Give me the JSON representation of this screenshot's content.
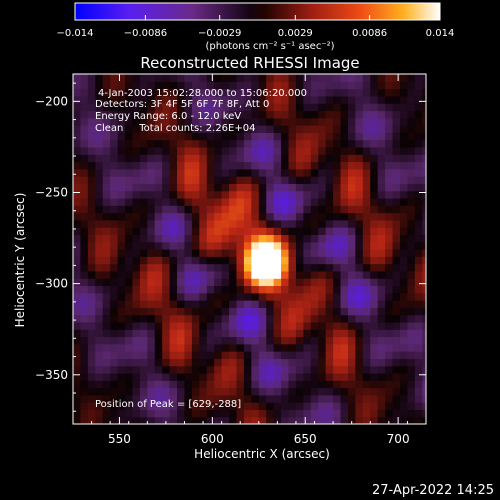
{
  "colorbar": {
    "tick_labels": [
      "−0.014",
      "−0.0086",
      "−0.0029",
      "0.0029",
      "0.0086",
      "0.014"
    ],
    "units_label": "(photons cm⁻² s⁻¹ asec⁻²)",
    "range": [
      -0.014,
      0.014
    ],
    "colors": [
      "#0000ff",
      "#7a2ae0",
      "#3a0a46",
      "#000000",
      "#7a1510",
      "#cc3020",
      "#ff7a10",
      "#ffd040",
      "#ffffff"
    ]
  },
  "chart_data": {
    "type": "heatmap",
    "title": "Reconstructed RHESSI Image",
    "xlabel": "Heliocentric X (arcsec)",
    "ylabel": "Heliocentric Y (arcsec)",
    "xlim": [
      525,
      715
    ],
    "ylim": [
      -377,
      -185
    ],
    "x_ticks": [
      550,
      600,
      650,
      700
    ],
    "y_ticks": [
      -200,
      -250,
      -300,
      -350
    ],
    "x_tick_labels": [
      "550",
      "600",
      "650",
      "700"
    ],
    "y_tick_labels": [
      "−200",
      "−250",
      "−300",
      "−350"
    ],
    "annotations": [
      "4-Jan-2003 15:02:28.000 to 15:06:20.000",
      "Detectors: 3F 4F 5F 6F 7F 8F, Att 0",
      "Energy Range: 6.0 - 12.0 keV",
      "Clean     Total counts: 2.26E+04"
    ],
    "peak_label": "Position of Peak = [629,-288]",
    "peak": [
      629,
      -288
    ],
    "grid": false
  },
  "footer": {
    "date": "27-Apr-2022 14:25"
  }
}
